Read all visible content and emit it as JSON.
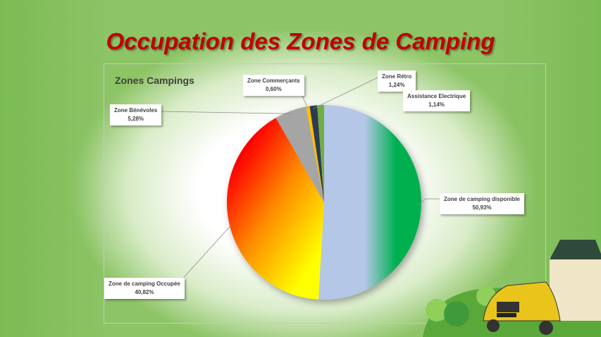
{
  "page_title": "Occupation des Zones de Camping",
  "chart_data": {
    "type": "pie",
    "title": "Zones Campings",
    "start_angle": "top",
    "direction": "clockwise",
    "slices": [
      {
        "label": "Zone de camping disponible",
        "value": 50.93,
        "display": "50,93%",
        "color": "#00b050",
        "color2": "#b4c7e7"
      },
      {
        "label": "Zone de camping Occupée",
        "value": 40.82,
        "display": "40,82%",
        "color": "#ff0000",
        "color2": "#ffff00"
      },
      {
        "label": "Zone  Bénévoles",
        "value": 5.28,
        "display": "5,28%",
        "color": "#a5a5a5"
      },
      {
        "label": "Zone Commerçants",
        "value": 0.6,
        "display": "0,60%",
        "color": "#ffc000"
      },
      {
        "label": "Zone Rétro",
        "value": 1.24,
        "display": "1,24%",
        "color": "#2f3a4f"
      },
      {
        "label": "Assistance Electrique",
        "value": 1.14,
        "display": "1,14%",
        "color": "#70ad47"
      }
    ]
  }
}
